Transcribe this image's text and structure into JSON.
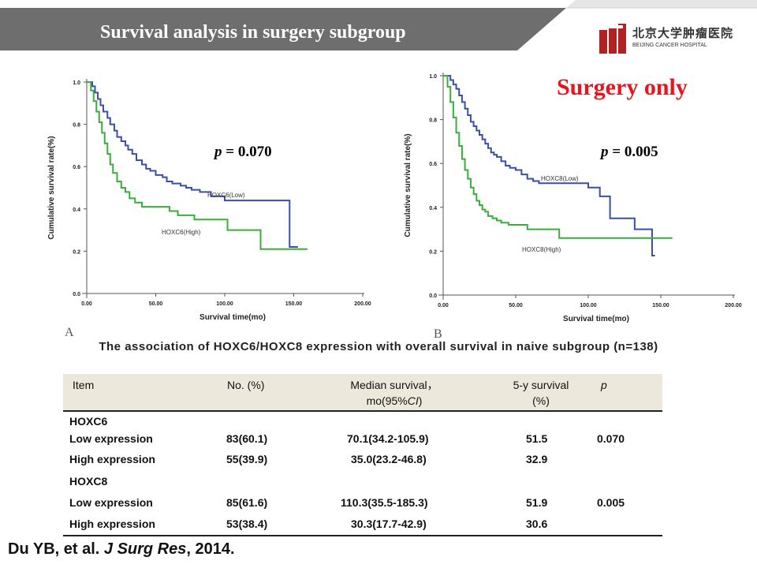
{
  "header": {
    "title": "Survival analysis in surgery subgroup"
  },
  "logo": {
    "text_cn": "北京大学肿瘤医院",
    "text_en": "BEIJING CANCER HOSPITAL"
  },
  "subtitle": "Surgery only",
  "charts": {
    "a": {
      "panel_label": "A",
      "p_prefix": "p",
      "p_value": " = 0.070"
    },
    "b": {
      "panel_label": "B",
      "p_prefix": "p",
      "p_value": " = 0.005"
    }
  },
  "chart_data": [
    {
      "type": "line",
      "panel": "A",
      "title": "",
      "xlabel": "Survival time(mo)",
      "ylabel": "Cumulative survival rate(%)",
      "xlim": [
        0,
        200
      ],
      "ylim": [
        0,
        1.0
      ],
      "x_ticks": [
        "0.00",
        "50.00",
        "100.00",
        "150.00",
        "200.00"
      ],
      "y_ticks": [
        "0.0",
        "0.2",
        "0.4",
        "0.6",
        "0.8",
        "1.0"
      ],
      "legend": "inline",
      "series": [
        {
          "name": "HOXC6(Low)",
          "color": "#3a4fa8",
          "x": [
            0,
            4,
            6,
            8,
            10,
            12,
            15,
            17,
            20,
            22,
            25,
            28,
            30,
            33,
            36,
            40,
            43,
            46,
            50,
            55,
            58,
            62,
            68,
            72,
            76,
            82,
            90,
            100,
            147,
            150,
            153
          ],
          "y": [
            1.0,
            0.98,
            0.95,
            0.92,
            0.89,
            0.86,
            0.83,
            0.8,
            0.77,
            0.74,
            0.72,
            0.7,
            0.68,
            0.66,
            0.63,
            0.61,
            0.59,
            0.58,
            0.56,
            0.55,
            0.53,
            0.52,
            0.51,
            0.5,
            0.49,
            0.48,
            0.46,
            0.44,
            0.22,
            0.22,
            0.22
          ]
        },
        {
          "name": "HOXC6(High)",
          "color": "#3aae3a",
          "x": [
            0,
            3,
            5,
            7,
            9,
            11,
            13,
            15,
            17,
            19,
            22,
            25,
            28,
            31,
            35,
            40,
            50,
            60,
            66,
            78,
            82,
            96,
            102,
            126,
            145,
            150,
            160
          ],
          "y": [
            1.0,
            0.96,
            0.91,
            0.86,
            0.81,
            0.76,
            0.71,
            0.66,
            0.61,
            0.57,
            0.53,
            0.5,
            0.48,
            0.45,
            0.43,
            0.41,
            0.41,
            0.39,
            0.37,
            0.35,
            0.35,
            0.35,
            0.3,
            0.21,
            0.21,
            0.21,
            0.21
          ]
        }
      ]
    },
    {
      "type": "line",
      "panel": "B",
      "title": "",
      "xlabel": "Survival time(mo)",
      "ylabel": "Cumulative survival rate(%)",
      "xlim": [
        0,
        200
      ],
      "ylim": [
        0,
        1.0
      ],
      "x_ticks": [
        "0.00",
        "50.00",
        "100.00",
        "150.00",
        "200.00"
      ],
      "y_ticks": [
        "0.0",
        "0.2",
        "0.4",
        "0.6",
        "0.8",
        "1.0"
      ],
      "legend": "inline",
      "series": [
        {
          "name": "HOXC8(Low)",
          "color": "#3a4fa8",
          "x": [
            0,
            5,
            7,
            9,
            11,
            13,
            15,
            17,
            19,
            21,
            23,
            25,
            27,
            29,
            31,
            33,
            35,
            37,
            40,
            43,
            46,
            50,
            54,
            58,
            62,
            66,
            70,
            75,
            100,
            108,
            115,
            120,
            132,
            144,
            146
          ],
          "y": [
            1.0,
            0.98,
            0.96,
            0.94,
            0.91,
            0.88,
            0.85,
            0.82,
            0.79,
            0.77,
            0.75,
            0.73,
            0.71,
            0.69,
            0.67,
            0.65,
            0.64,
            0.63,
            0.61,
            0.59,
            0.58,
            0.57,
            0.55,
            0.53,
            0.52,
            0.51,
            0.51,
            0.51,
            0.49,
            0.45,
            0.35,
            0.35,
            0.3,
            0.18,
            0.18
          ]
        },
        {
          "name": "HOXC8(High)",
          "color": "#3aae3a",
          "x": [
            0,
            3,
            5,
            7,
            9,
            11,
            13,
            15,
            17,
            19,
            21,
            23,
            25,
            27,
            29,
            31,
            34,
            37,
            40,
            45,
            50,
            58,
            62,
            68,
            80,
            100,
            120,
            158
          ],
          "y": [
            1.0,
            0.95,
            0.88,
            0.81,
            0.74,
            0.68,
            0.62,
            0.57,
            0.53,
            0.49,
            0.46,
            0.43,
            0.41,
            0.39,
            0.38,
            0.36,
            0.35,
            0.34,
            0.33,
            0.32,
            0.32,
            0.3,
            0.3,
            0.3,
            0.26,
            0.26,
            0.26,
            0.26
          ]
        }
      ]
    },
    {
      "type": "table",
      "title": "The association of HOXC6/HOXC8  expression with overall survival  in naive subgroup (n=138)",
      "columns": [
        "Item",
        "No. (%)",
        "Median survival， mo(95%CI)",
        "5-y survival (%)",
        "p"
      ],
      "groups": [
        {
          "name": "HOXC6",
          "p": "0.070",
          "rows": [
            [
              "Low expression",
              "83(60.1)",
              "70.1(34.2-105.9)",
              "51.5"
            ],
            [
              "High expression",
              "55(39.9)",
              "35.0(23.2-46.8)",
              "32.9"
            ]
          ]
        },
        {
          "name": "HOXC8",
          "p": "0.005",
          "rows": [
            [
              "Low expression",
              "85(61.6)",
              "110.3(35.5-185.3)",
              "51.9"
            ],
            [
              "High expression",
              "53(38.4)",
              "30.3(17.7-42.9)",
              "30.6"
            ]
          ]
        }
      ]
    }
  ],
  "table": {
    "title": "The association of HOXC6/HOXC8  expression with overall survival  in naive subgroup (n=138)",
    "head": {
      "item": "Item",
      "no": "No. (%)",
      "median_1": "Median survival，",
      "median_2": "mo(95%",
      "median_ci": "CI",
      "median_3": ")",
      "five_y_1": "5-y survival",
      "five_y_2": "(%)",
      "p": "p"
    },
    "groups": [
      {
        "name": "HOXC6",
        "p": "0.070",
        "rows": [
          {
            "item": "Low expression",
            "no": "83(60.1)",
            "median": "70.1(34.2-105.9)",
            "five_y": "51.5"
          },
          {
            "item": "High expression",
            "no": "55(39.9)",
            "median": "35.0(23.2-46.8)",
            "five_y": "32.9"
          }
        ]
      },
      {
        "name": "HOXC8",
        "p": "0.005",
        "rows": [
          {
            "item": "Low expression",
            "no": "85(61.6)",
            "median": "110.3(35.5-185.3)",
            "five_y": "51.9"
          },
          {
            "item": "High expression",
            "no": "53(38.4)",
            "median": "30.3(17.7-42.9)",
            "five_y": "30.6"
          }
        ]
      }
    ]
  },
  "citation": {
    "authors": "Du YB, et al. ",
    "journal": "J Surg Res",
    "year": ", 2014."
  },
  "colors": {
    "header_bg": "#6e6e6e",
    "low_curve": "#3a4fa8",
    "high_curve": "#3aae3a",
    "accent_red": "#e8141e",
    "table_header_bg": "#ece9dc"
  }
}
